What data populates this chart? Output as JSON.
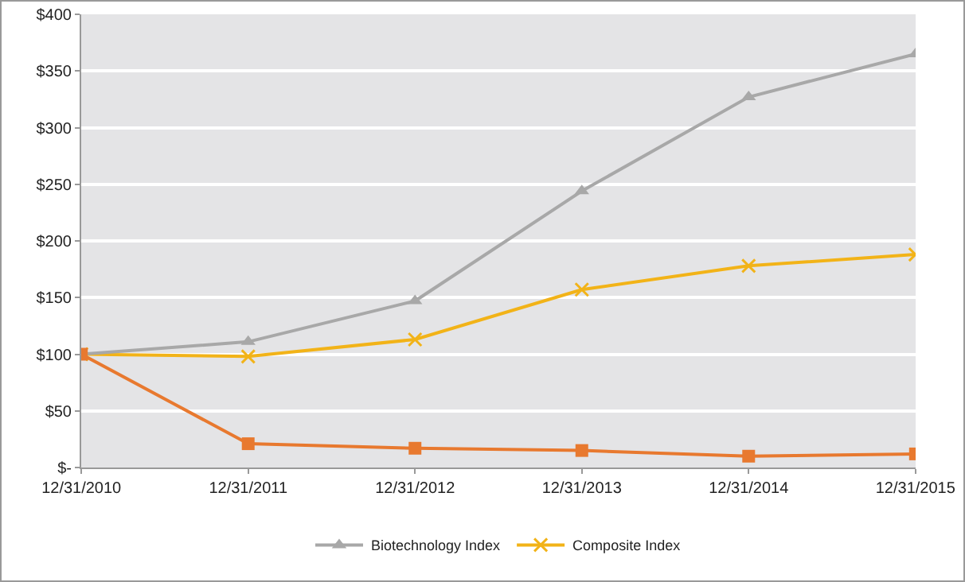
{
  "chart_data": {
    "type": "line",
    "categories": [
      "12/31/2010",
      "12/31/2011",
      "12/31/2012",
      "12/31/2013",
      "12/31/2014",
      "12/31/2015"
    ],
    "series": [
      {
        "color": "#e8792f",
        "marker": "square",
        "values": [
          100,
          21,
          17,
          15,
          10,
          12
        ]
      },
      {
        "name": "Biotechnology Index",
        "color": "#a8a8a8",
        "marker": "triangle",
        "values": [
          100,
          111,
          147,
          244,
          327,
          365
        ]
      },
      {
        "name": "Composite Index",
        "color": "#f2b318",
        "marker": "cross",
        "values": [
          100,
          98,
          113,
          157,
          178,
          188
        ]
      }
    ],
    "ylim": [
      0,
      400
    ],
    "yticks": [
      {
        "value": 0,
        "label": "$-"
      },
      {
        "value": 50,
        "label": "$50"
      },
      {
        "value": 100,
        "label": "$100"
      },
      {
        "value": 150,
        "label": "$150"
      },
      {
        "value": 200,
        "label": "$200"
      },
      {
        "value": 250,
        "label": "$250"
      },
      {
        "value": 300,
        "label": "$300"
      },
      {
        "value": 350,
        "label": "$350"
      },
      {
        "value": 400,
        "label": "$400"
      }
    ],
    "grid": "y",
    "legend": "bottom"
  }
}
